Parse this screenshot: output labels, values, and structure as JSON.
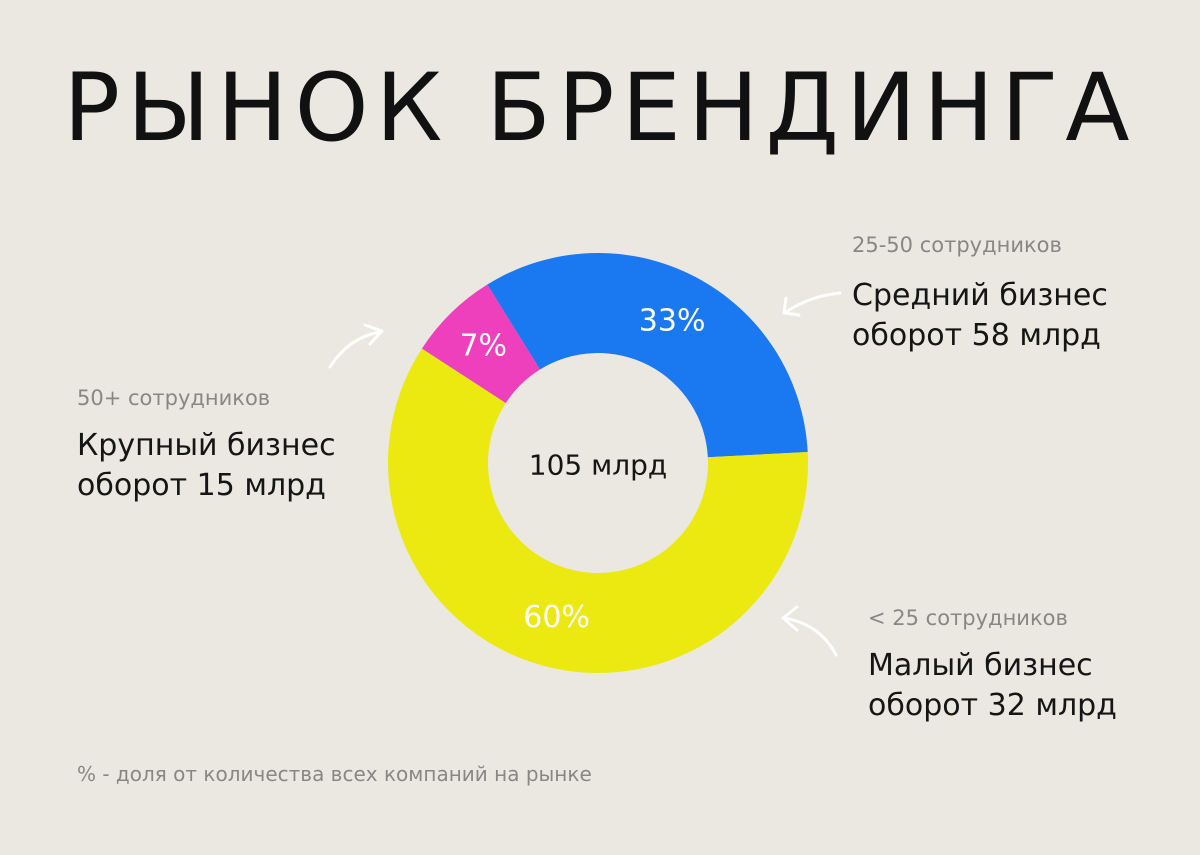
{
  "title": "РЫНОК БРЕНДИНГА",
  "footnote": "% - доля от количества всех компаний на рынке",
  "chart_data": {
    "type": "pie",
    "variant": "donut",
    "center_label": "105 млрд",
    "segments": [
      {
        "key": "large",
        "label": "7%",
        "value": 7,
        "color": "#ee3fbd"
      },
      {
        "key": "medium",
        "label": "33%",
        "value": 33,
        "color": "#1a78f0"
      },
      {
        "key": "small",
        "label": "60%",
        "value": 60,
        "color": "#ebe90f"
      }
    ]
  },
  "annotations": {
    "large": {
      "subtitle": "50+ сотрудников",
      "line1": "Крупный бизнес",
      "line2": "оборот 15 млрд"
    },
    "medium": {
      "subtitle": "25-50 сотрудников",
      "line1": "Средний бизнес",
      "line2": "оборот 58 млрд"
    },
    "small": {
      "subtitle": "< 25 сотрудников",
      "line1": "Малый бизнес",
      "line2": "оборот 32 млрд"
    }
  }
}
